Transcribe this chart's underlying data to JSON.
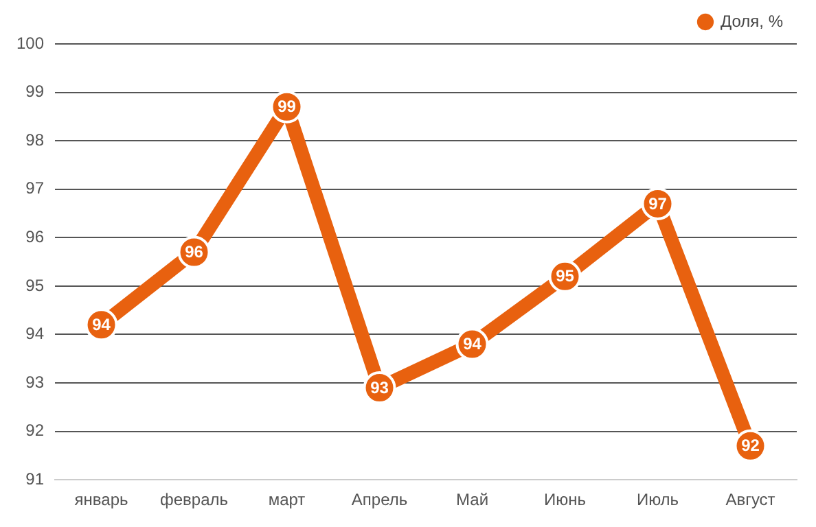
{
  "chart_data": {
    "type": "line",
    "categories": [
      "январь",
      "февраль",
      "март",
      "Апрель",
      "Май",
      "Июнь",
      "Июль",
      "Август"
    ],
    "series": [
      {
        "name": "Доля, %",
        "color": "#e8610f",
        "values": [
          94.2,
          95.7,
          98.7,
          92.9,
          93.8,
          95.2,
          96.7,
          91.7
        ],
        "value_labels": [
          "94",
          "96",
          "99",
          "93",
          "94",
          "95",
          "97",
          "92"
        ]
      }
    ],
    "ylim": [
      91,
      100
    ],
    "yticks": [
      91,
      92,
      93,
      94,
      95,
      96,
      97,
      98,
      99,
      100
    ],
    "grid": "y",
    "legend": "top right",
    "marker": "circle",
    "line_style": "solid"
  }
}
